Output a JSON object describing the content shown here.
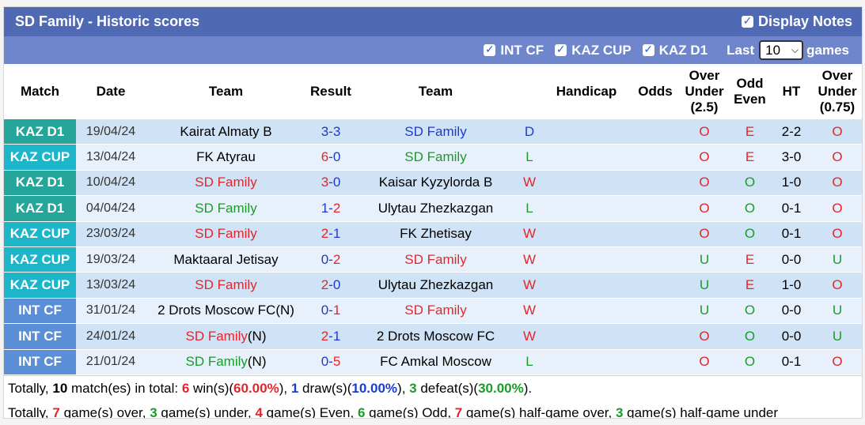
{
  "header": {
    "title": "SD Family - Historic scores",
    "display_notes_label": "Display Notes"
  },
  "filters": {
    "items": [
      "INT CF",
      "KAZ CUP",
      "KAZ D1"
    ],
    "last_label": "Last",
    "last_value": "10",
    "games_label": "games"
  },
  "columns": {
    "match": "Match",
    "date": "Date",
    "team": "Team",
    "result": "Result",
    "team2": "Team",
    "handicap": "Handicap",
    "odds": "Odds",
    "ou1": "Over",
    "ou2": "Under",
    "ou3": "(2.5)",
    "oe1": "Odd",
    "oe2": "Even",
    "ht": "HT",
    "ou075_1": "Over",
    "ou075_2": "Under",
    "ou075_3": "(0.75)"
  },
  "rows": [
    {
      "comp": "KAZ D1",
      "date": "19/04/24",
      "home": "Kairat Almaty B",
      "home_suffix": "",
      "hg": "3",
      "ag": "3",
      "away": "SD Family",
      "wl": "D",
      "ou": "O",
      "oe": "E",
      "ht": "2-2",
      "ou2": "O"
    },
    {
      "comp": "KAZ CUP",
      "date": "13/04/24",
      "home": "FK Atyrau",
      "home_suffix": "",
      "hg": "6",
      "ag": "0",
      "away": "SD Family",
      "wl": "L",
      "ou": "O",
      "oe": "E",
      "ht": "3-0",
      "ou2": "O"
    },
    {
      "comp": "KAZ D1",
      "date": "10/04/24",
      "home": "SD Family",
      "home_suffix": "",
      "hg": "3",
      "ag": "0",
      "away": "Kaisar Kyzylorda B",
      "wl": "W",
      "ou": "O",
      "oe": "O",
      "ht": "1-0",
      "ou2": "O"
    },
    {
      "comp": "KAZ D1",
      "date": "04/04/24",
      "home": "SD Family",
      "home_suffix": "",
      "hg": "1",
      "ag": "2",
      "away": "Ulytau Zhezkazgan",
      "wl": "L",
      "ou": "O",
      "oe": "O",
      "ht": "0-1",
      "ou2": "O"
    },
    {
      "comp": "KAZ CUP",
      "date": "23/03/24",
      "home": "SD Family",
      "home_suffix": "",
      "hg": "2",
      "ag": "1",
      "away": "FK Zhetisay",
      "wl": "W",
      "ou": "O",
      "oe": "O",
      "ht": "0-1",
      "ou2": "O"
    },
    {
      "comp": "KAZ CUP",
      "date": "19/03/24",
      "home": "Maktaaral Jetisay",
      "home_suffix": "",
      "hg": "0",
      "ag": "2",
      "away": "SD Family",
      "wl": "W",
      "ou": "U",
      "oe": "E",
      "ht": "0-0",
      "ou2": "U"
    },
    {
      "comp": "KAZ CUP",
      "date": "13/03/24",
      "home": "SD Family",
      "home_suffix": "",
      "hg": "2",
      "ag": "0",
      "away": "Ulytau Zhezkazgan",
      "wl": "W",
      "ou": "U",
      "oe": "E",
      "ht": "1-0",
      "ou2": "O"
    },
    {
      "comp": "INT CF",
      "date": "31/01/24",
      "home": "2 Drots Moscow FC",
      "home_suffix": "(N)",
      "hg": "0",
      "ag": "1",
      "away": "SD Family",
      "wl": "W",
      "ou": "U",
      "oe": "O",
      "ht": "0-0",
      "ou2": "U"
    },
    {
      "comp": "INT CF",
      "date": "24/01/24",
      "home": "SD Family",
      "home_suffix": "(N)",
      "hg": "2",
      "ag": "1",
      "away": "2 Drots Moscow FC",
      "wl": "W",
      "ou": "O",
      "oe": "O",
      "ht": "0-0",
      "ou2": "U"
    },
    {
      "comp": "INT CF",
      "date": "21/01/24",
      "home": "SD Family",
      "home_suffix": "(N)",
      "hg": "0",
      "ag": "5",
      "away": "FC Amkal Moscow",
      "wl": "L",
      "ou": "O",
      "oe": "O",
      "ht": "0-1",
      "ou2": "O"
    }
  ],
  "summary1": {
    "p1": "Totally, ",
    "matches": "10",
    "p2": " match(es) in total: ",
    "wins": "6",
    "p3": " win(s)(",
    "win_pct": "60.00%",
    "p4": "), ",
    "draws": "1",
    "p5": " draw(s)(",
    "draw_pct": "10.00%",
    "p6": "), ",
    "defeats": "3",
    "p7": " defeat(s)(",
    "defeat_pct": "30.00%",
    "p8": ")."
  },
  "summary2": {
    "p1": "Totally, ",
    "over": "7",
    "p2": " game(s) over, ",
    "under": "3",
    "p3": " game(s) under, ",
    "even": "4",
    "p4": " game(s) Even, ",
    "odd": "6",
    "p5": " game(s) Odd, ",
    "hg_over": "7",
    "p6": " game(s) half-game over, ",
    "hg_under": "3",
    "p7": " game(s) half-game under"
  },
  "colors": {
    "header_bg": "#4f69b5",
    "filter_bg": "#6f86cc",
    "kaz_d1": "#26a69a",
    "kaz_cup": "#1cb6c8",
    "int_cf": "#5a8fd8",
    "win": "#e3262b",
    "loss": "#1a9b2a",
    "draw": "#1b3bd0"
  }
}
